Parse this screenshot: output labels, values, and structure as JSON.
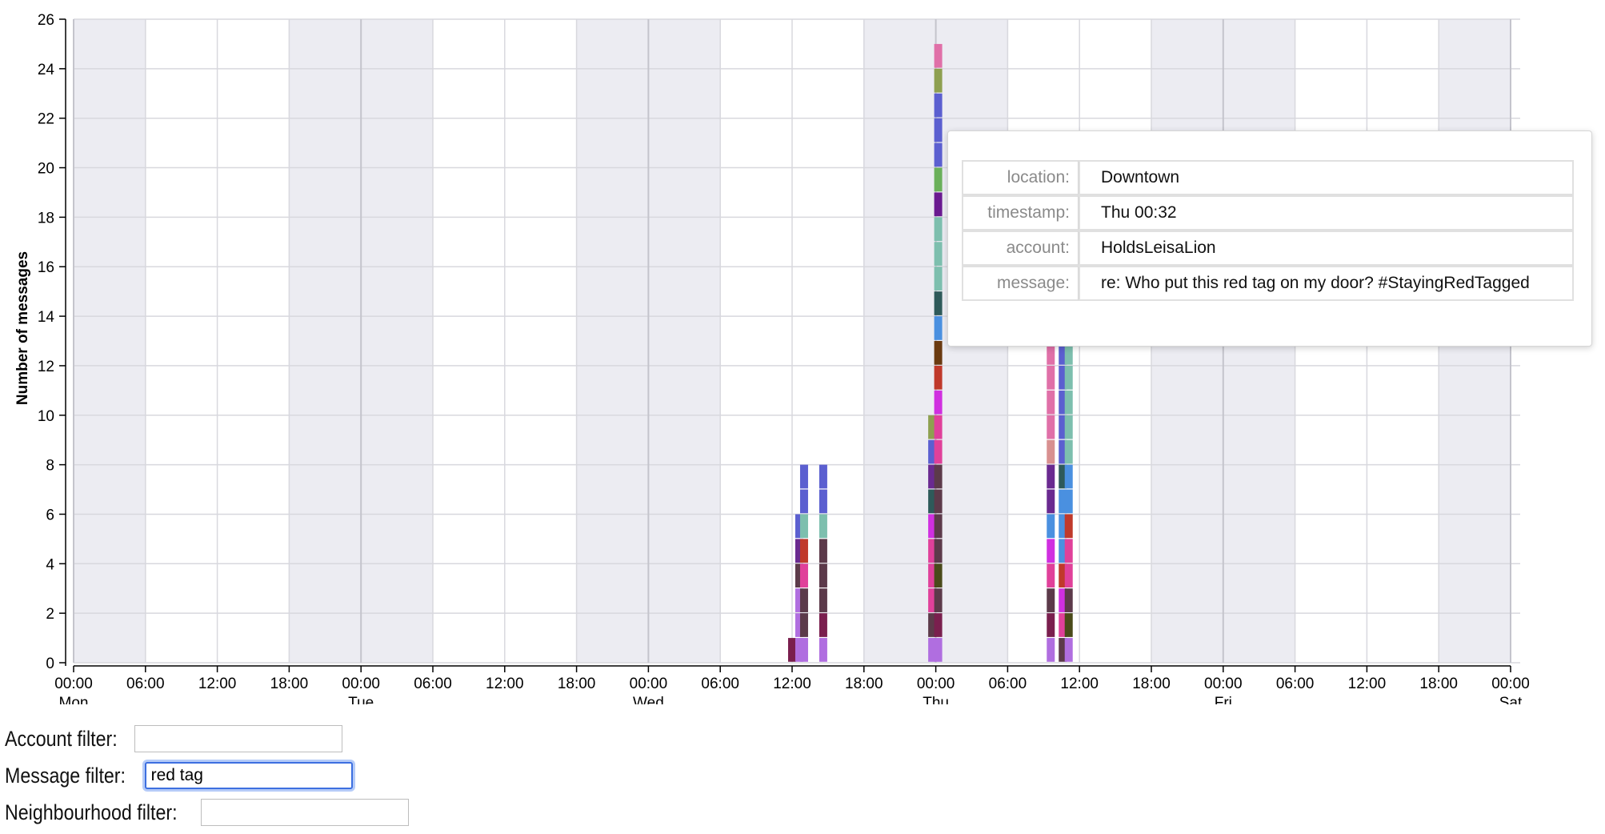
{
  "chart_data": {
    "type": "bar",
    "stacked": true,
    "ylabel": "Number of messages",
    "xlabel": "",
    "ylim": [
      0,
      26
    ],
    "yticks": [
      0,
      2,
      4,
      6,
      8,
      10,
      12,
      14,
      16,
      18,
      20,
      22,
      24,
      26
    ],
    "xlim_hours": [
      0,
      120
    ],
    "time_ticks": [
      {
        "hour": 0,
        "label": "00:00",
        "day": "Mon"
      },
      {
        "hour": 6,
        "label": "06:00",
        "day": ""
      },
      {
        "hour": 12,
        "label": "12:00",
        "day": ""
      },
      {
        "hour": 18,
        "label": "18:00",
        "day": ""
      },
      {
        "hour": 24,
        "label": "00:00",
        "day": "Tue"
      },
      {
        "hour": 30,
        "label": "06:00",
        "day": ""
      },
      {
        "hour": 36,
        "label": "12:00",
        "day": ""
      },
      {
        "hour": 42,
        "label": "18:00",
        "day": ""
      },
      {
        "hour": 48,
        "label": "00:00",
        "day": "Wed"
      },
      {
        "hour": 54,
        "label": "06:00",
        "day": ""
      },
      {
        "hour": 60,
        "label": "12:00",
        "day": ""
      },
      {
        "hour": 66,
        "label": "18:00",
        "day": ""
      },
      {
        "hour": 72,
        "label": "00:00",
        "day": "Thu"
      },
      {
        "hour": 78,
        "label": "06:00",
        "day": ""
      },
      {
        "hour": 84,
        "label": "12:00",
        "day": ""
      },
      {
        "hour": 90,
        "label": "18:00",
        "day": ""
      },
      {
        "hour": 96,
        "label": "00:00",
        "day": "Fri"
      },
      {
        "hour": 102,
        "label": "06:00",
        "day": ""
      },
      {
        "hour": 108,
        "label": "12:00",
        "day": ""
      },
      {
        "hour": 114,
        "label": "18:00",
        "day": ""
      },
      {
        "hour": 120,
        "label": "00:00",
        "day": "Sat"
      }
    ],
    "bars": [
      {
        "hour": 60.0,
        "colors": [
          "#7a1f4e"
        ]
      },
      {
        "hour": 60.6,
        "colors": [
          "#b06ee0",
          "#b06ee0",
          "#b06ee0",
          "#5c3a4a",
          "#6a2a90",
          "#5b5fd0"
        ]
      },
      {
        "hour": 61.0,
        "colors": [
          "#b06ee0",
          "#5c3a4a",
          "#5c3a4a",
          "#e0409a",
          "#c0392b",
          "#7dbfae",
          "#5b5fd0",
          "#5b5fd0"
        ]
      },
      {
        "hour": 62.6,
        "colors": [
          "#b06ee0",
          "#7a1f4e",
          "#5c3a4a",
          "#5c3a4a",
          "#5c3a4a",
          "#7dbfae",
          "#5b5fd0",
          "#5b5fd0"
        ]
      },
      {
        "hour": 71.7,
        "colors": [
          "#b06ee0",
          "#5c3a4a",
          "#e0409a",
          "#e0409a",
          "#e0409a",
          "#d02fe0",
          "#2e5a5a",
          "#6a2a90",
          "#5b5fd0",
          "#8ea050"
        ]
      },
      {
        "hour": 72.2,
        "colors": [
          "#b06ee0",
          "#7a1f4e",
          "#5c3a4a",
          "#4a4a1a",
          "#5c3a4a",
          "#5c3a4a",
          "#5c3a4a",
          "#5c3a4a",
          "#e0409a",
          "#e0409a",
          "#d02fe0",
          "#c0392b",
          "#6a3a10",
          "#4a90e0",
          "#2e5a5a",
          "#7dbfae",
          "#7dbfae",
          "#7dbfae",
          "#6a1a90",
          "#6ab05a",
          "#5b5fd0",
          "#5b5fd0",
          "#5b5fd0",
          "#8ea050",
          "#e070a8"
        ]
      },
      {
        "hour": 81.6,
        "colors": [
          "#b06ee0",
          "#7a1f4e",
          "#5c3a4a",
          "#e0409a",
          "#d02fe0",
          "#4a90e0",
          "#6a2a90",
          "#6a2a90",
          "#d89090",
          "#e070a8",
          "#e070a8",
          "#e070a8",
          "#e070a8",
          "#e070a8"
        ]
      },
      {
        "hour": 82.6,
        "colors": [
          "#5c3a4a",
          "#e0409a",
          "#d02fe0",
          "#c0392b",
          "#4a90e0",
          "#4a90e0",
          "#4a90e0",
          "#2e5a5a",
          "#5b5fd0",
          "#5b5fd0",
          "#5b5fd0",
          "#5b5fd0",
          "#5b5fd0",
          "#5b5fd0"
        ]
      },
      {
        "hour": 83.1,
        "colors": [
          "#b06ee0",
          "#4a4a1a",
          "#5c3a4a",
          "#e0409a",
          "#e0409a",
          "#c0392b",
          "#4a90e0",
          "#4a90e0",
          "#7dbfae",
          "#7dbfae",
          "#7dbfae",
          "#7dbfae",
          "#7dbfae",
          "#7dbfae"
        ]
      }
    ]
  },
  "tooltip": {
    "rows": [
      {
        "key": "location:",
        "value": "Downtown"
      },
      {
        "key": "timestamp:",
        "value": "Thu 00:32"
      },
      {
        "key": "account:",
        "value": "HoldsLeisaLion"
      },
      {
        "key": "message:",
        "value": "re: Who put this red tag on my door? #StayingRedTagged"
      }
    ]
  },
  "filters": {
    "account_label": "Account filter:",
    "account_value": "",
    "message_label": "Message filter:",
    "message_value": "red tag",
    "neighbourhood_label": "Neighbourhood filter:",
    "neighbourhood_value": ""
  }
}
